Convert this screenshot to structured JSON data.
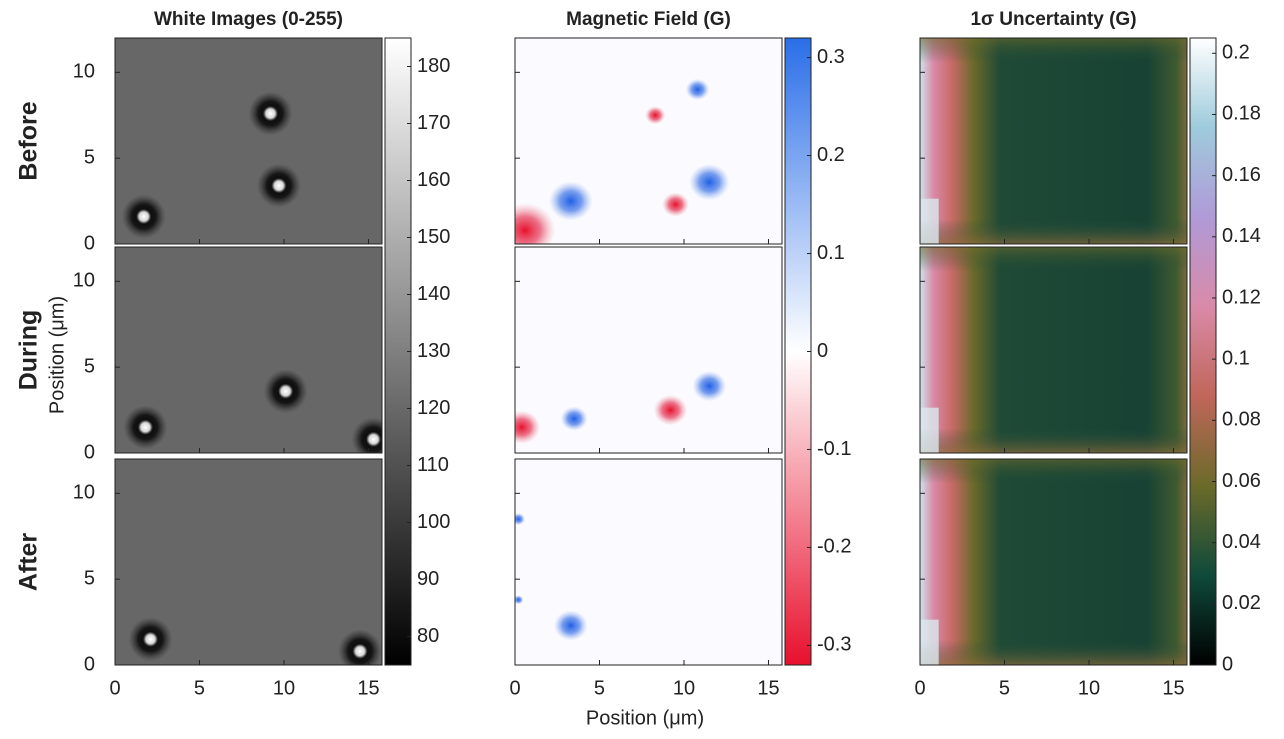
{
  "row_labels": [
    "Before",
    "During",
    "After"
  ],
  "xlabel": "Position (μm)",
  "ylabel": "Position (μm)",
  "chart_data": [
    {
      "type": "heatmap",
      "title": "White Images (0-255)",
      "show_ytick_labels": true,
      "xlim": [
        0,
        15.8
      ],
      "xticks": [
        0,
        5,
        10,
        15
      ],
      "ylim": [
        0,
        12
      ],
      "yticks": [
        0,
        5,
        10
      ],
      "colorbar": {
        "lim": [
          75,
          185
        ],
        "ticks": [
          80,
          90,
          100,
          110,
          120,
          130,
          140,
          150,
          160,
          170,
          180
        ],
        "colors": [
          "#000000",
          "#ffffff"
        ]
      }
    },
    {
      "type": "heatmap",
      "title": "Magnetic Field (G)",
      "show_ytick_labels": false,
      "xlim": [
        0,
        15.8
      ],
      "xticks": [
        0,
        5,
        10,
        15
      ],
      "ylim": [
        0,
        12
      ],
      "yticks": [
        0,
        5,
        10
      ],
      "colorbar": {
        "lim": [
          -0.32,
          0.32
        ],
        "ticks": [
          -0.3,
          -0.2,
          -0.1,
          0,
          0.1,
          0.2,
          0.3
        ],
        "colors": [
          "#e8102d",
          "#ffffff",
          "#2a6ee8"
        ]
      }
    },
    {
      "type": "heatmap",
      "title": "1σ Uncertainty (G)",
      "show_ytick_labels": false,
      "xlim": [
        0,
        15.8
      ],
      "xticks": [
        0,
        5,
        10,
        15
      ],
      "ylim": [
        0,
        12
      ],
      "yticks": [
        0,
        5,
        10
      ],
      "colorbar": {
        "lim": [
          0,
          0.205
        ],
        "ticks": [
          0,
          0.02,
          0.04,
          0.06,
          0.08,
          0.1,
          0.12,
          0.14,
          0.16,
          0.18,
          0.2
        ],
        "colors": [
          "#000000",
          "#0f4a3a",
          "#6b6a2a",
          "#c0665a",
          "#d98aa8",
          "#b09ad8",
          "#9ecbdc",
          "#ffffff"
        ]
      }
    }
  ]
}
